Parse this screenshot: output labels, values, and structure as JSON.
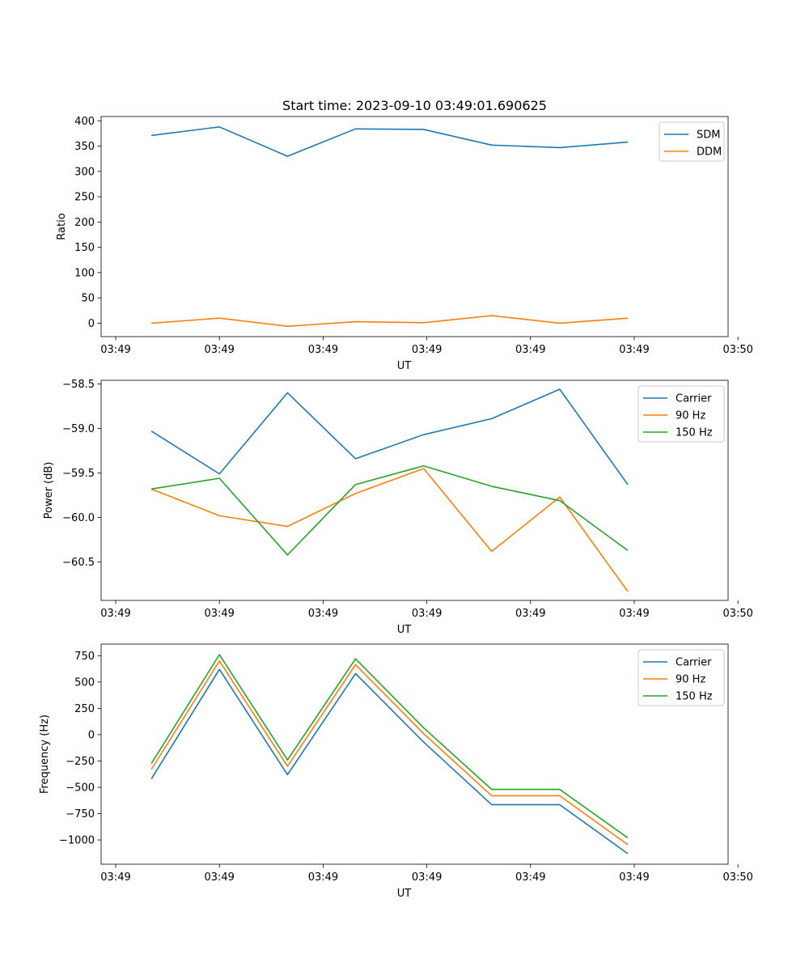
{
  "figure": {
    "title": "Start time: 2023-09-10 03:49:01.690625"
  },
  "chart_data": [
    {
      "type": "line",
      "id": "ratio",
      "xlabel": "UT",
      "ylabel": "Ratio",
      "x": [
        1,
        2,
        3,
        4,
        5,
        6,
        7,
        8
      ],
      "xlim": [
        0.262,
        9.474
      ],
      "x_ticks": [
        0.476,
        2.0,
        3.524,
        5.048,
        6.571,
        8.095,
        9.619
      ],
      "x_tick_labels": [
        "03:49",
        "03:49",
        "03:49",
        "03:49",
        "03:49",
        "03:49",
        "03:50"
      ],
      "ylim": [
        -26.5,
        408.5
      ],
      "y_ticks": [
        0,
        50,
        100,
        150,
        200,
        250,
        300,
        350,
        400
      ],
      "y_tick_labels": [
        "0",
        "50",
        "100",
        "150",
        "200",
        "250",
        "300",
        "350",
        "400"
      ],
      "legend": "top-right",
      "series": [
        {
          "name": "SDM",
          "color": "#1f77b4",
          "values": [
            371,
            388,
            330,
            384,
            383,
            352,
            347,
            358
          ]
        },
        {
          "name": "DDM",
          "color": "#ff7f0e",
          "values": [
            0,
            10,
            -6,
            3,
            1,
            15,
            0,
            10
          ]
        }
      ]
    },
    {
      "type": "line",
      "id": "power",
      "xlabel": "UT",
      "ylabel": "Power (dB)",
      "x": [
        1,
        2,
        3,
        4,
        5,
        6,
        7,
        8
      ],
      "xlim": [
        0.262,
        9.474
      ],
      "x_ticks": [
        0.476,
        2.0,
        3.524,
        5.048,
        6.571,
        8.095,
        9.619
      ],
      "x_tick_labels": [
        "03:49",
        "03:49",
        "03:49",
        "03:49",
        "03:49",
        "03:49",
        "03:50"
      ],
      "ylim": [
        -60.93,
        -58.46
      ],
      "y_ticks": [
        -60.5,
        -60.0,
        -59.5,
        -59.0,
        -58.5
      ],
      "y_tick_labels": [
        "−60.5",
        "−60.0",
        "−59.5",
        "−59.0",
        "−58.5"
      ],
      "legend": "top-right",
      "series": [
        {
          "name": "Carrier",
          "color": "#1f77b4",
          "values": [
            -59.03,
            -59.51,
            -58.6,
            -59.34,
            -59.07,
            -58.89,
            -58.56,
            -59.63
          ]
        },
        {
          "name": "90 Hz",
          "color": "#ff7f0e",
          "values": [
            -59.68,
            -59.98,
            -60.1,
            -59.73,
            -59.45,
            -60.38,
            -59.77,
            -60.83
          ]
        },
        {
          "name": "150 Hz",
          "color": "#2ca02c",
          "values": [
            -59.68,
            -59.56,
            -60.42,
            -59.63,
            -59.42,
            -59.65,
            -59.81,
            -60.37
          ]
        }
      ]
    },
    {
      "type": "line",
      "id": "frequency",
      "xlabel": "UT",
      "ylabel": "Frequency (Hz)",
      "x": [
        1,
        2,
        3,
        4,
        5,
        6,
        7,
        8
      ],
      "xlim": [
        0.262,
        9.474
      ],
      "x_ticks": [
        0.476,
        2.0,
        3.524,
        5.048,
        6.571,
        8.095,
        9.619
      ],
      "x_tick_labels": [
        "03:49",
        "03:49",
        "03:49",
        "03:49",
        "03:49",
        "03:49",
        "03:50"
      ],
      "ylim": [
        -1230,
        860
      ],
      "y_ticks": [
        -1000,
        -750,
        -500,
        -250,
        0,
        250,
        500,
        750
      ],
      "y_tick_labels": [
        "−1000",
        "−750",
        "−500",
        "−250",
        "0",
        "250",
        "500",
        "750"
      ],
      "legend": "top-right",
      "series": [
        {
          "name": "Carrier",
          "color": "#1f77b4",
          "values": [
            -420,
            620,
            -380,
            580,
            -70,
            -665,
            -665,
            -1130
          ]
        },
        {
          "name": "90 Hz",
          "color": "#ff7f0e",
          "values": [
            -330,
            700,
            -300,
            665,
            10,
            -580,
            -580,
            -1045
          ]
        },
        {
          "name": "150 Hz",
          "color": "#2ca02c",
          "values": [
            -275,
            760,
            -240,
            720,
            65,
            -520,
            -520,
            -980
          ]
        }
      ]
    }
  ]
}
